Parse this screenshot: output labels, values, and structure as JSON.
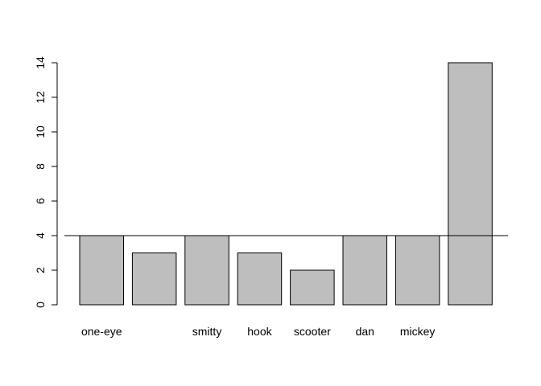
{
  "chart_data": {
    "type": "bar",
    "categories": [
      "one-eye",
      "",
      "smitty",
      "hook",
      "scooter",
      "dan",
      "mickey",
      ""
    ],
    "values": [
      4,
      3,
      4,
      3,
      2,
      4,
      4,
      14
    ],
    "title": "",
    "xlabel": "",
    "ylabel": "",
    "ylim": [
      0,
      14
    ],
    "yticks": [
      0,
      2,
      4,
      6,
      8,
      10,
      12,
      14
    ],
    "reference_line": {
      "y": 4
    },
    "grid": false,
    "bar_color": "#bebebe",
    "border_color": "#000000"
  }
}
